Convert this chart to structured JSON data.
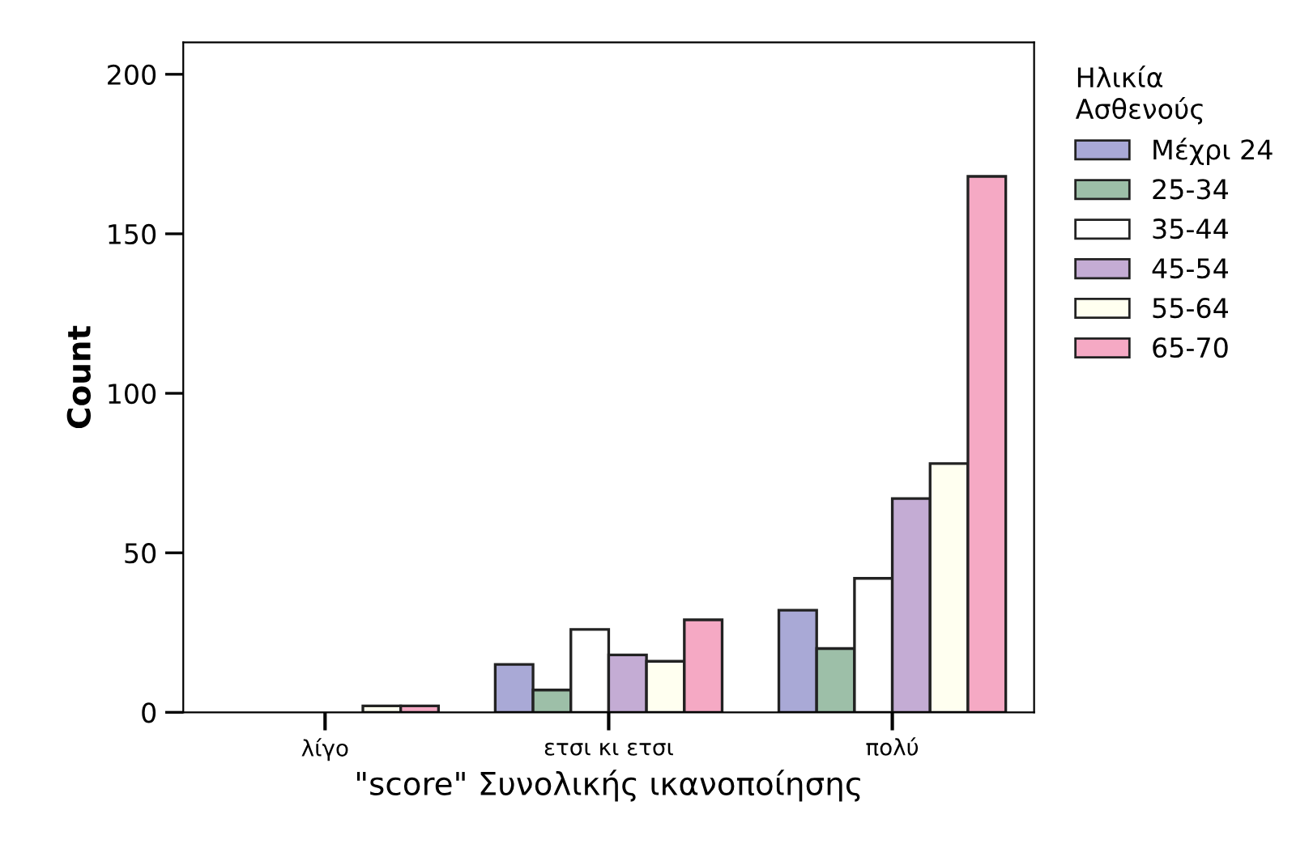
{
  "chart_data": {
    "type": "bar",
    "xlabel": "\"score\" Συνολικής ικανοποίησης",
    "ylabel": "Count",
    "legend_title": "Ηλικία\nΑσθενούς",
    "categories": [
      "λίγο",
      "ετσι κι ετσι",
      "πολύ"
    ],
    "series": [
      {
        "name": "Μέχρι 24",
        "color": "#a9a9d6",
        "values": [
          null,
          15,
          32
        ]
      },
      {
        "name": "25-34",
        "color": "#9dbfa8",
        "values": [
          null,
          7,
          20
        ]
      },
      {
        "name": "35-44",
        "color": "#ffffff",
        "values": [
          null,
          26,
          42
        ]
      },
      {
        "name": "45-54",
        "color": "#c4acd4",
        "values": [
          null,
          18,
          67
        ]
      },
      {
        "name": "55-64",
        "color": "#fffff0",
        "values": [
          2,
          16,
          78
        ]
      },
      {
        "name": "65-70",
        "color": "#f5a9c4",
        "values": [
          2,
          29,
          168
        ]
      }
    ],
    "ylim": [
      0,
      210
    ],
    "yticks": [
      0,
      50,
      100,
      150,
      200
    ],
    "grid": false,
    "legend": "right"
  }
}
